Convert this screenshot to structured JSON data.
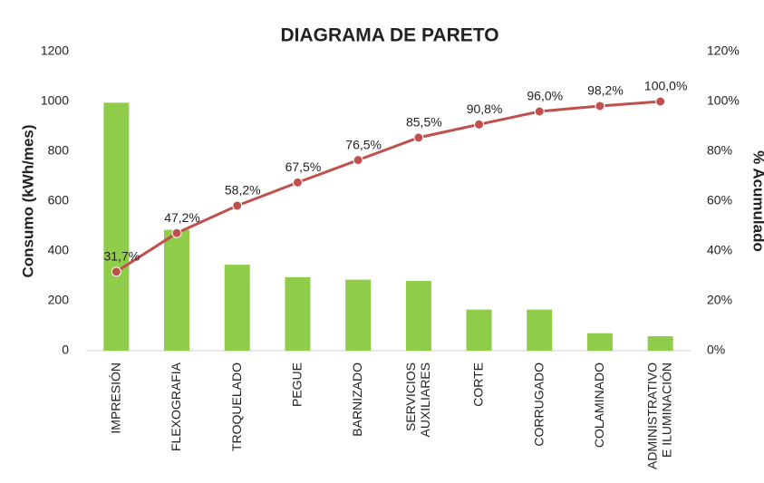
{
  "chart_data": {
    "type": "pareto",
    "title": "DIAGRAMA DE PARETO",
    "ylabel": "Consumo (kWh/mes)",
    "y2label": "% Acumulado",
    "categories": [
      "IMPRESIÓN",
      "FLEXOGRAFIA",
      "TROQUELADO",
      "PEGUE",
      "BARNIZADO",
      "SERVICIOS\nAUXILIARES",
      "CORTE",
      "CORRUGADO",
      "COLAMINADO",
      "ADMINISTRATIVO\nE ILUMINACIÓN"
    ],
    "series": [
      {
        "type": "bar",
        "color": "#8fcc4a",
        "values": [
          995,
          485,
          345,
          295,
          285,
          280,
          165,
          165,
          70,
          58
        ]
      },
      {
        "type": "line",
        "axis": "y2",
        "color": "#c0504d",
        "values": [
          31.7,
          47.2,
          58.2,
          67.5,
          76.5,
          85.5,
          90.8,
          96.0,
          98.2,
          100.0
        ],
        "value_labels": [
          "31,7%",
          "47,2%",
          "58,2%",
          "67,5%",
          "76,5%",
          "85,5%",
          "90,8%",
          "96,0%",
          "98,2%",
          "100,0%"
        ]
      }
    ],
    "ylim": [
      0,
      1200
    ],
    "yticks": [
      0,
      200,
      400,
      600,
      800,
      1000,
      1200
    ],
    "y2lim": [
      0,
      120
    ],
    "y2ticks": [
      {
        "value": 0,
        "label": "0%"
      },
      {
        "value": 20,
        "label": "20%"
      },
      {
        "value": 40,
        "label": "40%"
      },
      {
        "value": 60,
        "label": "60%"
      },
      {
        "value": 80,
        "label": "80%"
      },
      {
        "value": 100,
        "label": "100%"
      },
      {
        "value": 120,
        "label": "120%"
      }
    ],
    "grid": false
  }
}
